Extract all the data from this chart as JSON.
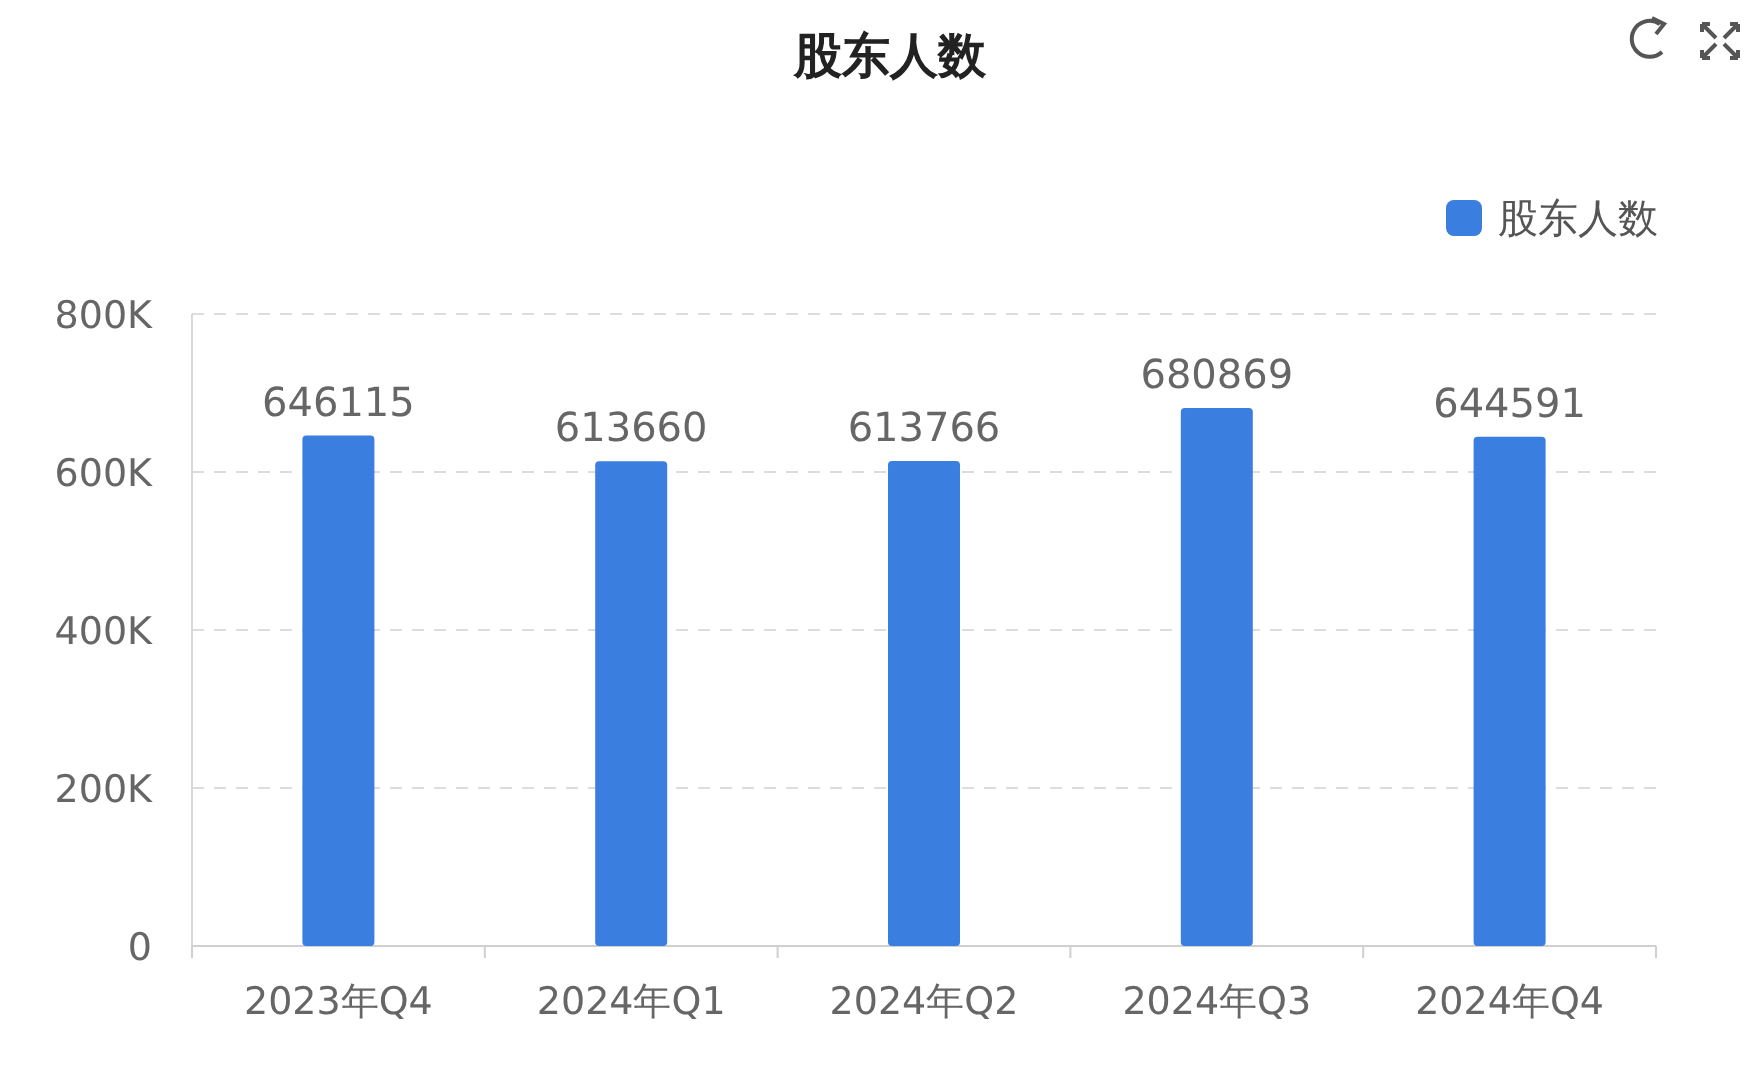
{
  "chart_data": {
    "type": "bar",
    "title": "股东人数",
    "categories": [
      "2023年Q4",
      "2024年Q1",
      "2024年Q2",
      "2024年Q3",
      "2024年Q4"
    ],
    "series": [
      {
        "name": "股东人数",
        "color": "#3a7ee0",
        "values": [
          646115,
          613660,
          613766,
          680869,
          644591
        ]
      }
    ],
    "ylim": [
      0,
      800000
    ],
    "yticks": [
      0,
      {
        "value": 200000,
        "label": "200K"
      },
      {
        "value": 400000,
        "label": "400K"
      },
      {
        "value": 600000,
        "label": "600K"
      },
      {
        "value": 800000,
        "label": "800K"
      }
    ],
    "grid": "y",
    "legend": "top right",
    "data_labels": true
  }
}
